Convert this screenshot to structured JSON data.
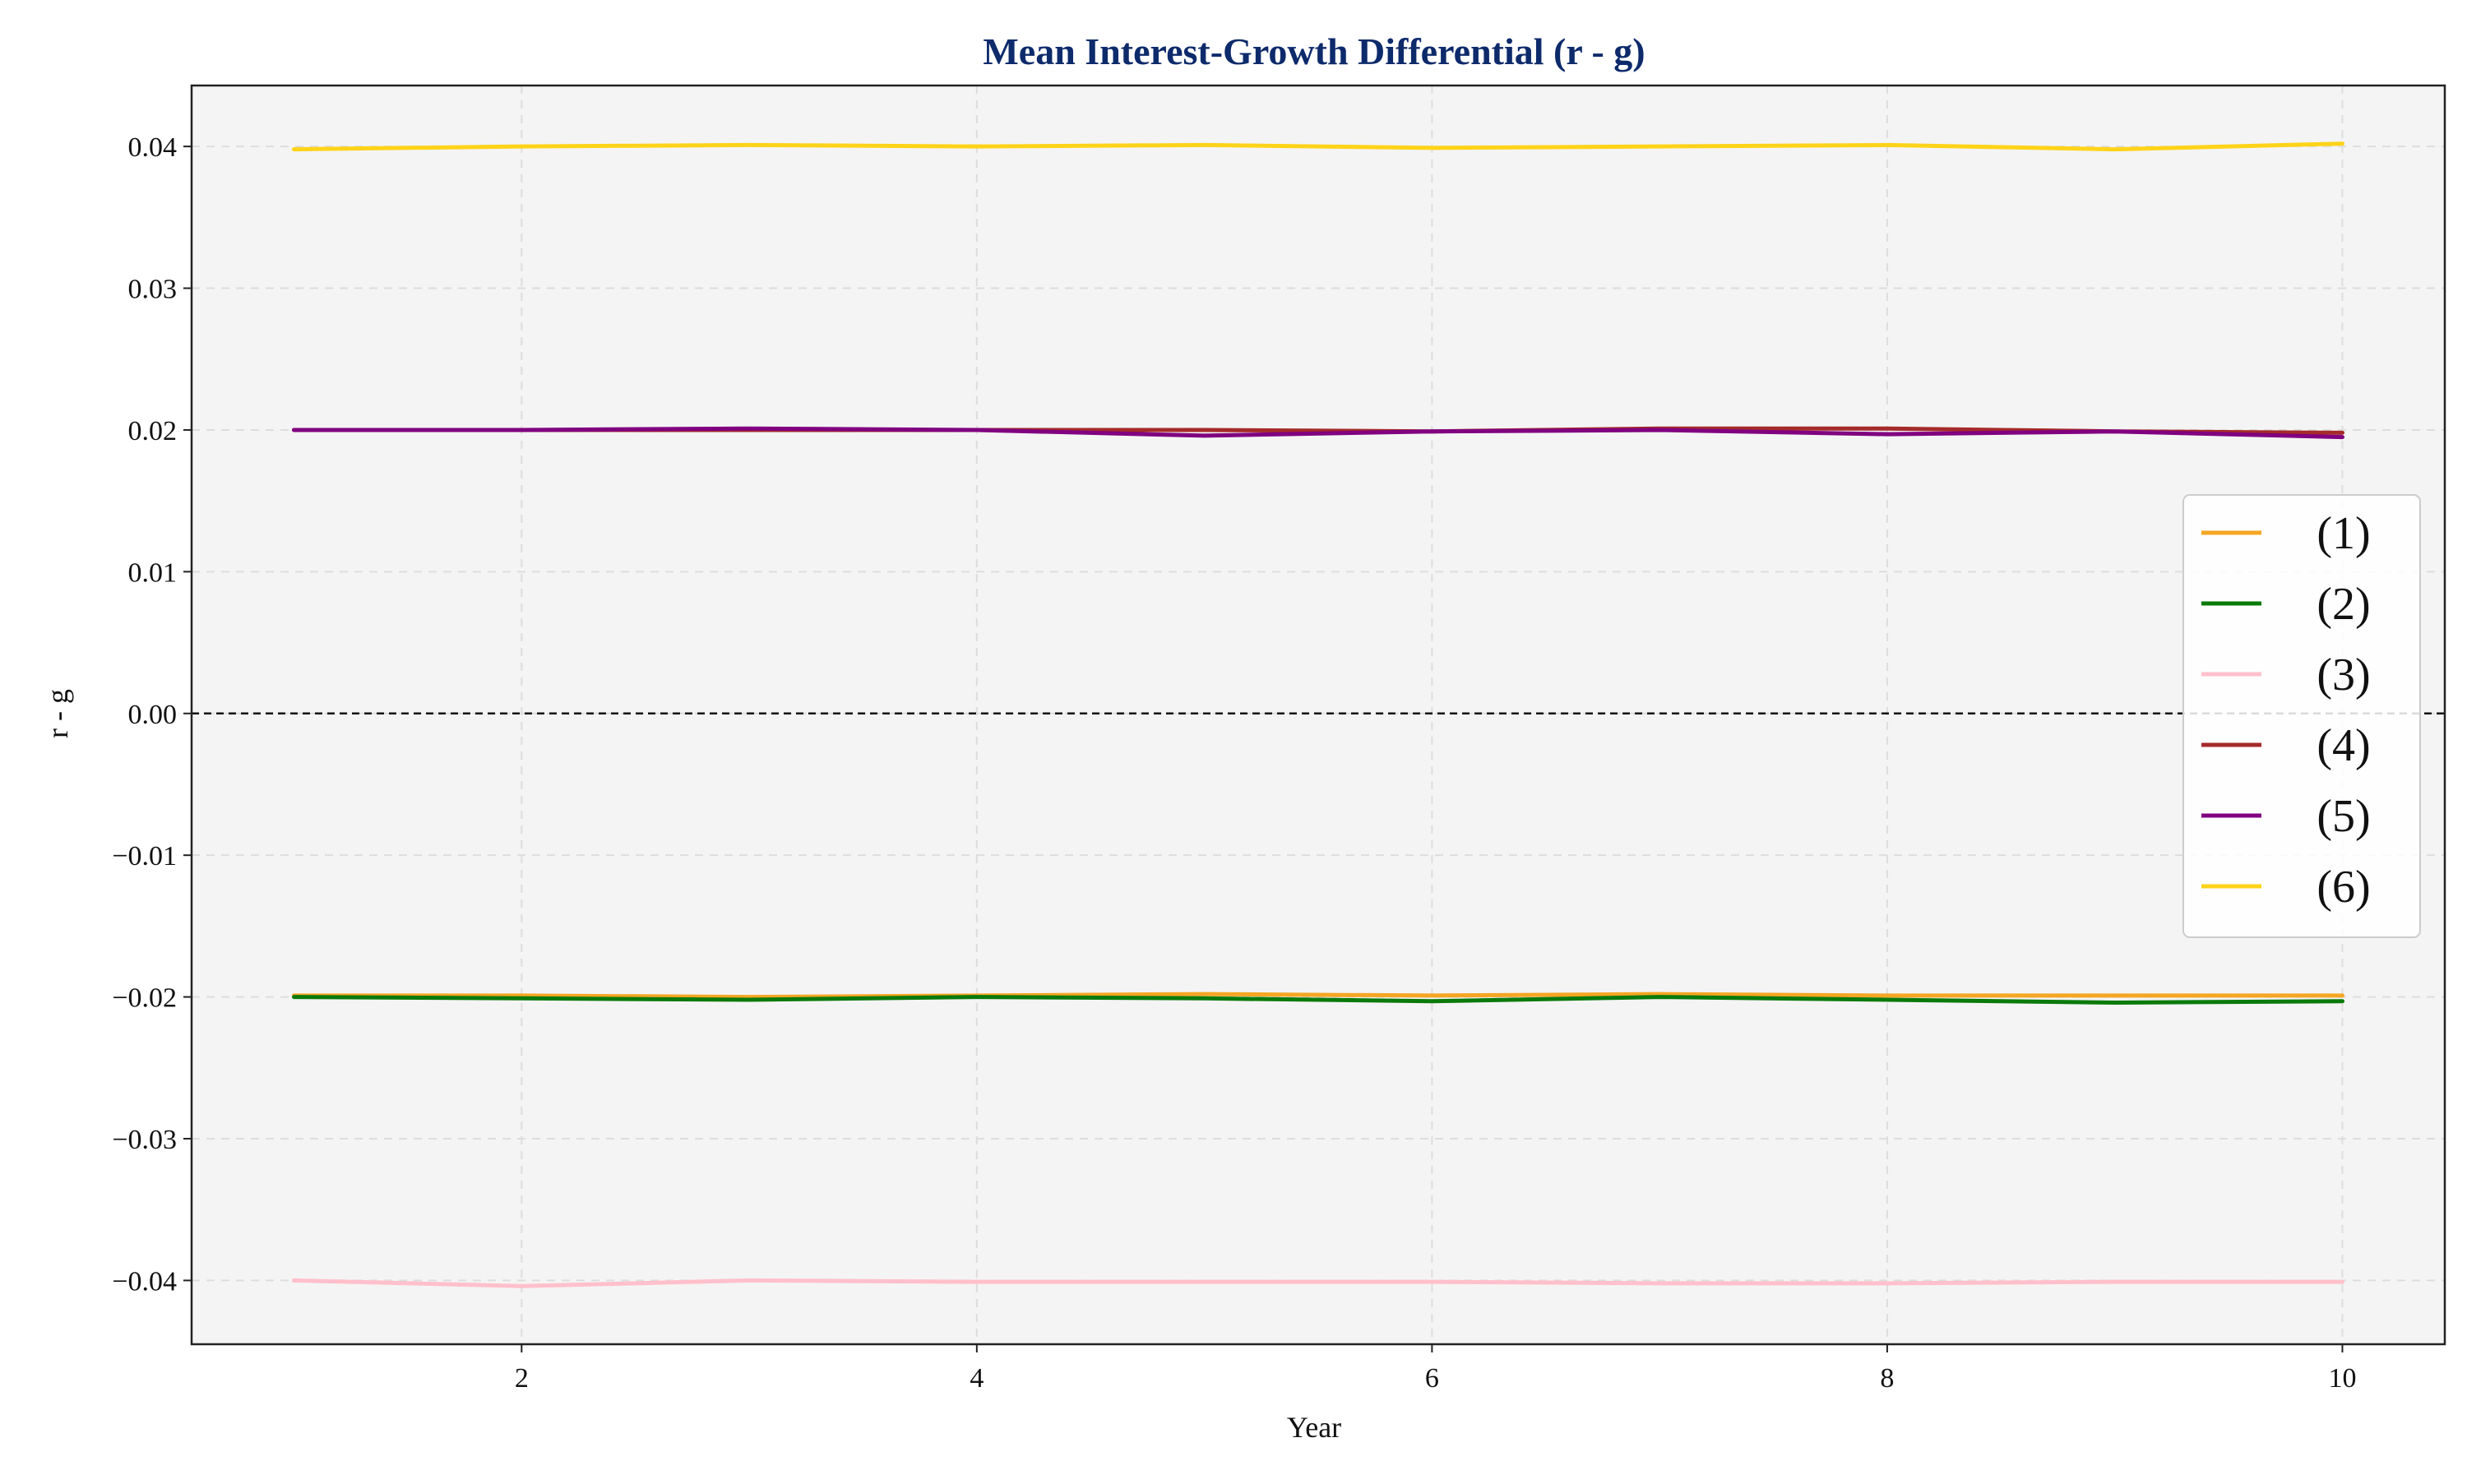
{
  "chart_data": {
    "type": "line",
    "title": "Mean Interest-Growth Differential (r - g)",
    "xlabel": "Year",
    "ylabel": "r - g",
    "xlim": [
      0.55,
      10.45
    ],
    "ylim": [
      -0.0445,
      0.0443
    ],
    "xticks": [
      2,
      4,
      6,
      8,
      10
    ],
    "xtick_labels": [
      "2",
      "4",
      "6",
      "8",
      "10"
    ],
    "yticks": [
      -0.04,
      -0.03,
      -0.02,
      -0.01,
      0.0,
      0.01,
      0.02,
      0.03,
      0.04
    ],
    "ytick_labels": [
      "−0.04",
      "−0.03",
      "−0.02",
      "−0.01",
      "0.00",
      "0.01",
      "0.02",
      "0.03",
      "0.04"
    ],
    "grid": true,
    "reference_line": {
      "y": 0.0,
      "style": "dashed",
      "color": "#111111"
    },
    "legend_position": "center-right",
    "x": [
      1,
      2,
      3,
      4,
      5,
      6,
      7,
      8,
      9,
      10
    ],
    "series": [
      {
        "name": "(1)",
        "color": "#f5a623",
        "values": [
          -0.0199,
          -0.0199,
          -0.02,
          -0.0199,
          -0.0198,
          -0.0199,
          -0.0198,
          -0.0199,
          -0.0199,
          -0.0199
        ]
      },
      {
        "name": "(2)",
        "color": "#0a7a0a",
        "values": [
          -0.02,
          -0.0201,
          -0.0202,
          -0.02,
          -0.0201,
          -0.0203,
          -0.02,
          -0.0202,
          -0.0204,
          -0.0203
        ]
      },
      {
        "name": "(3)",
        "color": "#ffc0cb",
        "values": [
          -0.04,
          -0.0404,
          -0.04,
          -0.0401,
          -0.0401,
          -0.0401,
          -0.0402,
          -0.0402,
          -0.0401,
          -0.0401
        ]
      },
      {
        "name": "(4)",
        "color": "#a52a2a",
        "values": [
          0.02,
          0.02,
          0.02,
          0.02,
          0.02,
          0.0199,
          0.0201,
          0.0201,
          0.0199,
          0.0198
        ]
      },
      {
        "name": "(5)",
        "color": "#800080",
        "values": [
          0.02,
          0.02,
          0.0201,
          0.02,
          0.0196,
          0.0199,
          0.02,
          0.0197,
          0.0199,
          0.0195
        ]
      },
      {
        "name": "(6)",
        "color": "#ffd319",
        "values": [
          0.0398,
          0.04,
          0.0401,
          0.04,
          0.0401,
          0.0399,
          0.04,
          0.0401,
          0.0398,
          0.0402
        ]
      }
    ],
    "colors": {
      "title": "#0d2a6b",
      "plot_background": "#f4f4f4",
      "grid": "#dddddd",
      "axes": "#222222"
    }
  }
}
